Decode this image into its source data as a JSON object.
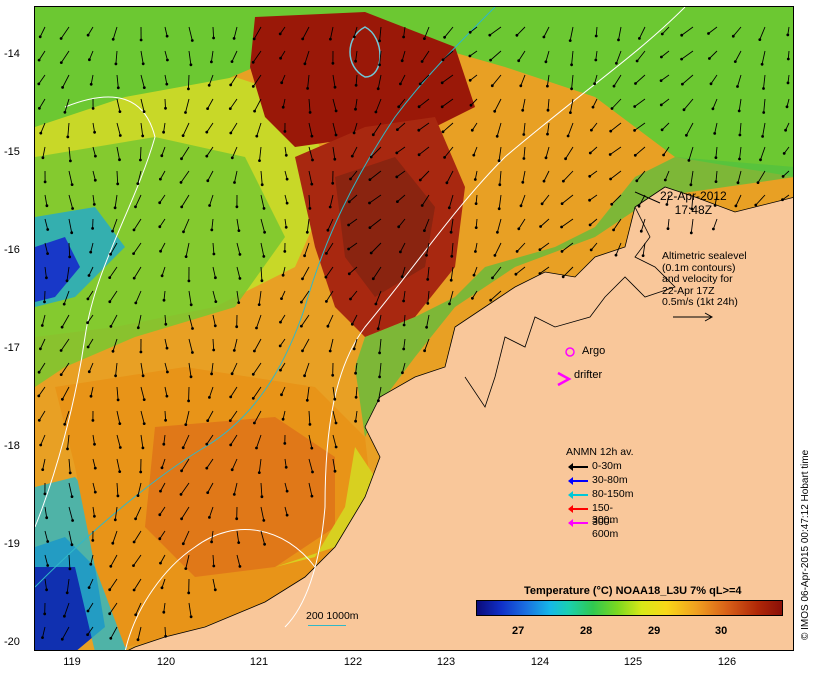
{
  "map": {
    "y_ticks": [
      "-14",
      "-15",
      "-16",
      "-17",
      "-18",
      "-19",
      "-20"
    ],
    "x_ticks": [
      "119",
      "120",
      "121",
      "122",
      "123",
      "124",
      "125",
      "126"
    ],
    "date_line1": "22-Apr-2012",
    "date_line2": "17:48Z",
    "altimetry_note": [
      "Altimetric sealevel",
      "(0.1m contours)",
      "and velocity for",
      "22-Apr 17Z",
      "0.5m/s (1kt 24h)"
    ],
    "argo_label": "Argo",
    "drifter_label": "drifter",
    "anmn_title": "ANMN 12h av.",
    "anmn_legend": [
      {
        "label": "0-30m",
        "color": "#000000"
      },
      {
        "label": "30-80m",
        "color": "#0000ff"
      },
      {
        "label": "80-150m",
        "color": "#00c8d8"
      },
      {
        "label": "150-300m",
        "color": "#ff0000"
      },
      {
        "label": "300-600m",
        "color": "#ff00ff"
      }
    ],
    "colorbar_title": "Temperature (°C) NOAA18_L3U 7% qL>=4",
    "colorbar_ticks": [
      "27",
      "28",
      "29",
      "30"
    ],
    "depth_scale_label": "200  1000m",
    "credit": "© IMOS 06-Apr-2015 00:47:12 Hobart time",
    "colors": {
      "land": "#f9c79a",
      "warm": "#a01808",
      "orange": "#e89018",
      "yellow": "#e8d820",
      "green": "#58c830",
      "cyan": "#20b8d8",
      "blue": "#1838c8",
      "argo": "#ff00ff",
      "contour": "#ffffff",
      "isobath": "#30b8c8"
    }
  }
}
